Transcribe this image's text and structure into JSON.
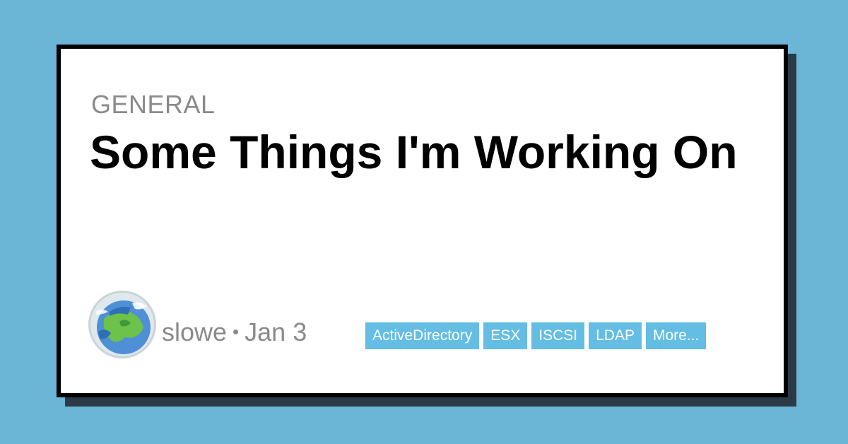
{
  "post": {
    "category": "GENERAL",
    "title": "Some Things I'm Working On",
    "author": "slowe",
    "separator": "•",
    "date": "Jan 3"
  },
  "tags": [
    {
      "label": "ActiveDirectory"
    },
    {
      "label": "ESX"
    },
    {
      "label": "ISCSI"
    },
    {
      "label": "LDAP"
    },
    {
      "label": "More..."
    }
  ],
  "colors": {
    "background": "#6bb6d6",
    "card": "#ffffff",
    "border": "#000000",
    "shadow": "#2b3a46",
    "tag": "#64bde3",
    "meta_text": "#8a8a8a"
  },
  "icons": {
    "avatar": "globe-illustration-avatar"
  }
}
